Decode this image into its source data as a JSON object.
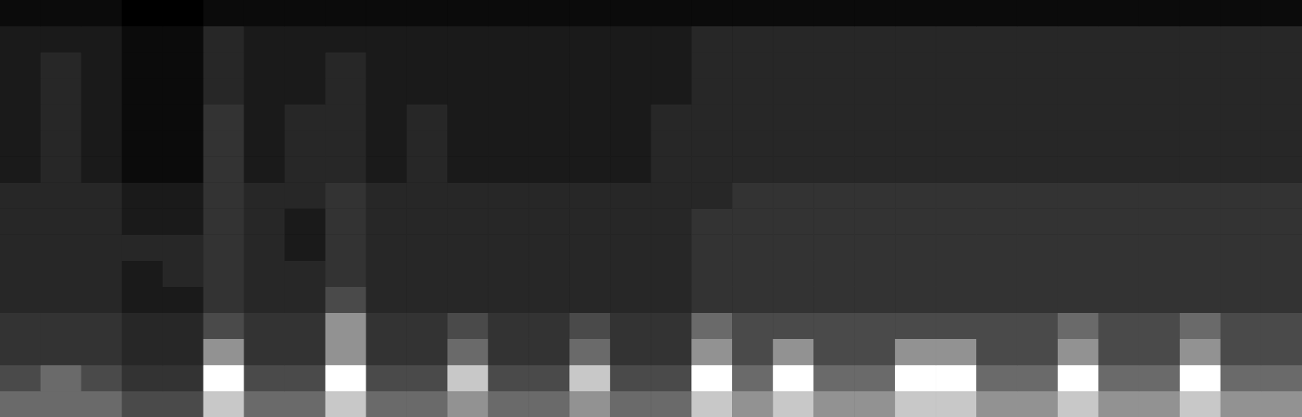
{
  "chart_data": {
    "type": "heatmap",
    "tick_labels": false,
    "grid": false,
    "zlim": [
      0,
      9
    ],
    "cells": [
      [
        6,
        6,
        6,
        5,
        5,
        8,
        6,
        6,
        8,
        6,
        6,
        7,
        6,
        6,
        7,
        6,
        6,
        8,
        7,
        8,
        7,
        7,
        8,
        8,
        7,
        7,
        8,
        7,
        7,
        8,
        7,
        7
      ],
      [
        5,
        6,
        5,
        4,
        4,
        9,
        5,
        5,
        9,
        5,
        5,
        8,
        5,
        5,
        8,
        5,
        5,
        9,
        6,
        9,
        6,
        6,
        9,
        9,
        6,
        6,
        9,
        6,
        6,
        9,
        6,
        6
      ],
      [
        4,
        4,
        4,
        3,
        3,
        7,
        4,
        4,
        7,
        4,
        4,
        6,
        4,
        4,
        6,
        4,
        4,
        7,
        5,
        7,
        5,
        5,
        7,
        7,
        5,
        5,
        7,
        5,
        5,
        7,
        5,
        5
      ],
      [
        4,
        4,
        4,
        3,
        3,
        5,
        4,
        4,
        7,
        4,
        4,
        5,
        4,
        4,
        5,
        4,
        4,
        6,
        5,
        5,
        5,
        5,
        5,
        5,
        5,
        5,
        6,
        5,
        5,
        6,
        5,
        5
      ],
      [
        3,
        3,
        3,
        2,
        2,
        4,
        3,
        3,
        5,
        3,
        3,
        3,
        3,
        3,
        3,
        3,
        3,
        4,
        4,
        4,
        4,
        4,
        4,
        4,
        4,
        4,
        4,
        4,
        4,
        4,
        4,
        4
      ],
      [
        3,
        3,
        3,
        2,
        3,
        4,
        3,
        3,
        4,
        3,
        3,
        3,
        3,
        3,
        3,
        3,
        3,
        4,
        4,
        4,
        4,
        4,
        4,
        4,
        4,
        4,
        4,
        4,
        4,
        4,
        4,
        4
      ],
      [
        3,
        3,
        3,
        3,
        3,
        4,
        3,
        2,
        4,
        3,
        3,
        3,
        3,
        3,
        3,
        3,
        3,
        4,
        4,
        4,
        4,
        4,
        4,
        4,
        4,
        4,
        4,
        4,
        4,
        4,
        4,
        4
      ],
      [
        3,
        3,
        3,
        2,
        2,
        4,
        3,
        2,
        4,
        3,
        3,
        3,
        3,
        3,
        3,
        3,
        3,
        4,
        4,
        4,
        4,
        4,
        4,
        4,
        4,
        4,
        4,
        4,
        4,
        4,
        4,
        4
      ],
      [
        3,
        3,
        3,
        2,
        2,
        4,
        3,
        3,
        4,
        3,
        3,
        3,
        3,
        3,
        3,
        3,
        3,
        3,
        4,
        4,
        4,
        4,
        4,
        4,
        4,
        4,
        4,
        4,
        4,
        4,
        4,
        4
      ],
      [
        2,
        3,
        2,
        1,
        1,
        4,
        2,
        3,
        3,
        2,
        3,
        2,
        2,
        2,
        2,
        2,
        3,
        3,
        3,
        3,
        3,
        3,
        3,
        3,
        3,
        3,
        3,
        3,
        3,
        3,
        3,
        3
      ],
      [
        2,
        3,
        2,
        1,
        1,
        4,
        2,
        3,
        3,
        2,
        3,
        2,
        2,
        2,
        2,
        2,
        3,
        3,
        3,
        3,
        3,
        3,
        3,
        3,
        3,
        3,
        3,
        3,
        3,
        3,
        3,
        3
      ],
      [
        2,
        3,
        2,
        1,
        1,
        4,
        2,
        3,
        3,
        2,
        3,
        2,
        2,
        2,
        2,
        2,
        3,
        3,
        3,
        3,
        3,
        3,
        3,
        3,
        3,
        3,
        3,
        3,
        3,
        3,
        3,
        3
      ],
      [
        2,
        3,
        2,
        1,
        1,
        3,
        2,
        2,
        3,
        2,
        2,
        2,
        2,
        2,
        2,
        2,
        2,
        3,
        3,
        3,
        3,
        3,
        3,
        3,
        3,
        3,
        3,
        3,
        3,
        3,
        3,
        3
      ],
      [
        2,
        3,
        2,
        1,
        1,
        3,
        2,
        2,
        3,
        2,
        2,
        2,
        2,
        2,
        2,
        2,
        2,
        3,
        3,
        3,
        3,
        3,
        3,
        3,
        3,
        3,
        3,
        3,
        3,
        3,
        3,
        3
      ],
      [
        2,
        2,
        2,
        1,
        1,
        3,
        2,
        2,
        2,
        2,
        2,
        2,
        2,
        2,
        2,
        2,
        2,
        3,
        3,
        3,
        3,
        3,
        3,
        3,
        3,
        3,
        3,
        3,
        3,
        3,
        3,
        3
      ],
      [
        1,
        1,
        1,
        0,
        0,
        1,
        1,
        1,
        1,
        1,
        1,
        1,
        1,
        1,
        1,
        1,
        1,
        1,
        1,
        1,
        1,
        1,
        1,
        1,
        1,
        1,
        1,
        1,
        1,
        1,
        1,
        1
      ]
    ]
  }
}
